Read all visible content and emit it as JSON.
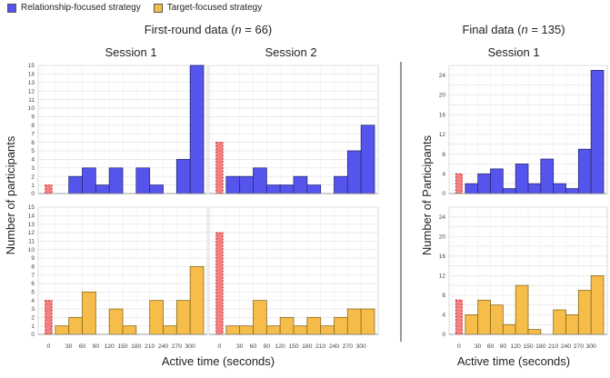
{
  "legend": {
    "items": [
      {
        "label": "Relationship-focused strategy",
        "color": "#5555ee"
      },
      {
        "label": "Target-focused strategy",
        "color": "#f6bd4a"
      }
    ]
  },
  "colors": {
    "relationship": "#5555ee",
    "target": "#f6bd4a",
    "zero_bar": "#f06a6a"
  },
  "chart_data": [
    {
      "type": "bar",
      "title_prefix": "First-round data (",
      "title_n": "n",
      "title_suffix": " = 66)",
      "ylabel": "Number of participants",
      "xlabel": "Active time (seconds)",
      "xticks": [
        "0",
        "30",
        "60",
        "90",
        "120",
        "150",
        "180",
        "210",
        "240",
        "270",
        "300"
      ],
      "grid": true,
      "panels": [
        {
          "session": "Session 1",
          "strategy": "Relationship-focused strategy",
          "ylim": [
            0,
            15
          ],
          "yticks": [
            "0",
            "1",
            "2",
            "3",
            "4",
            "5",
            "6",
            "7",
            "8",
            "9",
            "10",
            "11",
            "12",
            "13",
            "14",
            "15"
          ],
          "zero_value": 1,
          "values": [
            0,
            2,
            3,
            1,
            3,
            0,
            3,
            1,
            0,
            4,
            15
          ]
        },
        {
          "session": "Session 2",
          "strategy": "Relationship-focused strategy",
          "ylim": [
            0,
            15
          ],
          "zero_value": 6,
          "values": [
            2,
            2,
            3,
            1,
            1,
            2,
            1,
            0,
            2,
            5,
            8
          ]
        },
        {
          "session": "Session 1",
          "strategy": "Target-focused strategy",
          "ylim": [
            0,
            15
          ],
          "yticks": [
            "0",
            "1",
            "2",
            "3",
            "4",
            "5",
            "6",
            "7",
            "8",
            "9",
            "10",
            "11",
            "12",
            "13",
            "14",
            "15"
          ],
          "zero_value": 4,
          "values": [
            1,
            2,
            5,
            0,
            3,
            1,
            0,
            4,
            1,
            4,
            8
          ]
        },
        {
          "session": "Session 2",
          "strategy": "Target-focused strategy",
          "ylim": [
            0,
            15
          ],
          "zero_value": 12,
          "values": [
            1,
            1,
            4,
            1,
            2,
            1,
            2,
            1,
            2,
            3,
            3
          ]
        }
      ]
    },
    {
      "type": "bar",
      "title_prefix": "Final data (",
      "title_n": "n",
      "title_suffix": " = 135)",
      "ylabel": "Number of Participants",
      "xlabel": "Active time (seconds)",
      "xticks": [
        "0",
        "30",
        "60",
        "90",
        "120",
        "150",
        "180",
        "210",
        "240",
        "270",
        "300"
      ],
      "grid": true,
      "panels": [
        {
          "session": "Session 1",
          "strategy": "Relationship-focused strategy",
          "ylim": [
            0,
            26
          ],
          "yticks": [
            "0",
            "4",
            "8",
            "12",
            "16",
            "20",
            "24"
          ],
          "zero_value": 4,
          "values": [
            2,
            4,
            5,
            1,
            6,
            2,
            7,
            2,
            1,
            9,
            25
          ]
        },
        {
          "session": "Session 1",
          "strategy": "Target-focused strategy",
          "ylim": [
            0,
            26
          ],
          "yticks": [
            "0",
            "4",
            "8",
            "12",
            "16",
            "20",
            "24"
          ],
          "zero_value": 7,
          "values": [
            4,
            7,
            6,
            2,
            10,
            1,
            0,
            5,
            4,
            9,
            12
          ]
        }
      ]
    }
  ]
}
